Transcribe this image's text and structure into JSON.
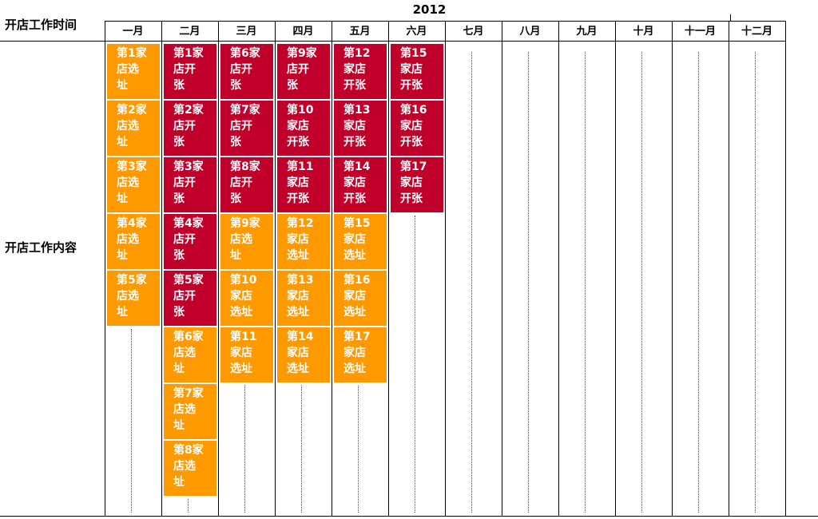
{
  "header": {
    "year": "2012",
    "time_label": "开店工作时间",
    "content_label": "开店工作内容"
  },
  "months": [
    "一月",
    "二月",
    "三月",
    "四月",
    "五月",
    "六月",
    "七月",
    "八月",
    "九月",
    "十月",
    "十一月",
    "十二月"
  ],
  "colors": {
    "select": "#FF9900",
    "open": "#C0002A"
  },
  "tasks": [
    [
      "第1家\n店选\n址",
      "第2家\n店选\n址",
      "第3家\n店选\n址",
      "第4家\n店选\n址",
      "第5家\n店选\n址"
    ],
    [
      "第1家\n店开\n张",
      "第2家\n店开\n张",
      "第3家\n店开\n张",
      "第4家\n店开\n张",
      "第5家\n店开\n张",
      "第6家\n店选\n址",
      "第7家\n店选\n址",
      "第8家\n店选\n址"
    ],
    [
      "第6家\n店开\n张",
      "第7家\n店开\n张",
      "第8家\n店开\n张",
      "第9家\n店选\n址",
      "第10\n家店\n选址",
      "第11\n家店\n选址"
    ],
    [
      "第9家\n店开\n张",
      "第10\n家店\n开张",
      "第11\n家店\n开张",
      "第12\n家店\n选址",
      "第13\n家店\n选址",
      "第14\n家店\n选址"
    ],
    [
      "第12\n家店\n开张",
      "第13\n家店\n开张",
      "第14\n家店\n开张",
      "第15\n家店\n选址",
      "第16\n家店\n选址",
      "第17\n家店\n选址"
    ],
    [
      "第15\n家店\n开张",
      "第16\n家店\n开张",
      "第17\n家店\n开张"
    ]
  ]
}
